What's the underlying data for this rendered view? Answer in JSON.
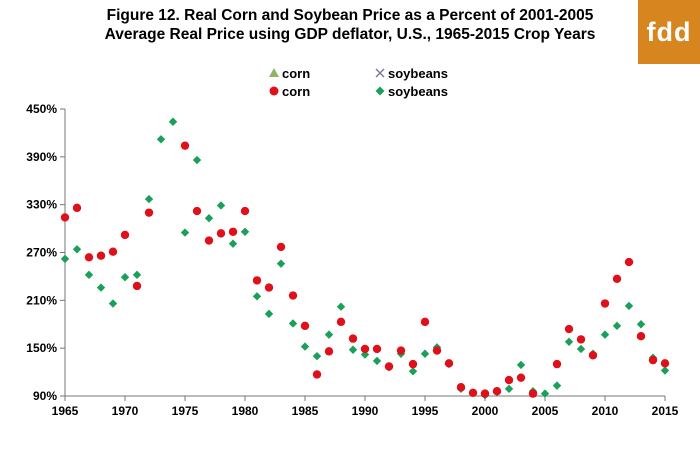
{
  "title_line1": "Figure 12. Real Corn and Soybean Price as a Percent of 2001-2005",
  "title_line2": "Average Real Price using GDP deflator, U.S., 1965-2015 Crop Years",
  "logo_text": "fdd",
  "colors": {
    "logo": "#d7861f",
    "corn": "#e0101a",
    "soybeans": "#1aa05a",
    "corn_tri": "#8fb464",
    "soy_x": "#7a7a9a"
  },
  "legend": {
    "corn_tri": "corn",
    "soy_x": "soybeans",
    "corn_dot": "corn",
    "soy_diamond": "soybeans"
  },
  "chart_data": {
    "type": "scatter",
    "title": "Figure 12. Real Corn and Soybean Price as a Percent of 2001-2005 Average Real Price using GDP deflator, U.S., 1965-2015 Crop Years",
    "xlim": [
      1965,
      2015
    ],
    "ylim": [
      90,
      450
    ],
    "x_ticks": [
      "1965",
      "1970",
      "1975",
      "1980",
      "1985",
      "1990",
      "1995",
      "2000",
      "2005",
      "2010",
      "2015"
    ],
    "y_ticks": [
      "90%",
      "150%",
      "210%",
      "270%",
      "330%",
      "390%",
      "450%"
    ],
    "legend_position": "top-center",
    "series": [
      {
        "name": "corn",
        "marker": "circle",
        "color": "#e0101a",
        "x": [
          1965,
          1966,
          1967,
          1968,
          1969,
          1970,
          1971,
          1972,
          1973,
          1974,
          1975,
          1976,
          1977,
          1978,
          1979,
          1980,
          1981,
          1982,
          1983,
          1984,
          1985,
          1986,
          1987,
          1988,
          1989,
          1990,
          1991,
          1992,
          1993,
          1994,
          1995,
          1996,
          1997,
          1998,
          1999,
          2000,
          2001,
          2002,
          2003,
          2004,
          2005,
          2006,
          2007,
          2008,
          2009,
          2010,
          2011,
          2012,
          2013,
          2014,
          2015
        ],
        "y": [
          314,
          326,
          264,
          266,
          271,
          292,
          228,
          320,
          null,
          null,
          404,
          322,
          285,
          294,
          296,
          322,
          235,
          226,
          277,
          216,
          178,
          117,
          146,
          183,
          162,
          149,
          149,
          127,
          147,
          130,
          183,
          147,
          131,
          101,
          94,
          93,
          96,
          110,
          113,
          93,
          null,
          130,
          174,
          161,
          141,
          206,
          237,
          258,
          165,
          135,
          131
        ]
      },
      {
        "name": "soybeans",
        "marker": "diamond",
        "color": "#1aa05a",
        "x": [
          1965,
          1966,
          1967,
          1968,
          1969,
          1970,
          1971,
          1972,
          1973,
          1974,
          1975,
          1976,
          1977,
          1978,
          1979,
          1980,
          1981,
          1982,
          1983,
          1984,
          1985,
          1986,
          1987,
          1988,
          1989,
          1990,
          1991,
          1992,
          1993,
          1994,
          1995,
          1996,
          1997,
          1998,
          1999,
          2000,
          2001,
          2002,
          2003,
          2004,
          2005,
          2006,
          2007,
          2008,
          2009,
          2010,
          2011,
          2012,
          2013,
          2014,
          2015
        ],
        "y": [
          262,
          274,
          242,
          226,
          206,
          239,
          242,
          337,
          412,
          434,
          295,
          386,
          313,
          329,
          281,
          296,
          215,
          193,
          256,
          181,
          152,
          140,
          167,
          202,
          148,
          142,
          134,
          126,
          143,
          121,
          143,
          151,
          130,
          99,
          94,
          91,
          95,
          99,
          129,
          96,
          93,
          103,
          158,
          149,
          143,
          167,
          178,
          203,
          180,
          138,
          122
        ]
      }
    ]
  }
}
